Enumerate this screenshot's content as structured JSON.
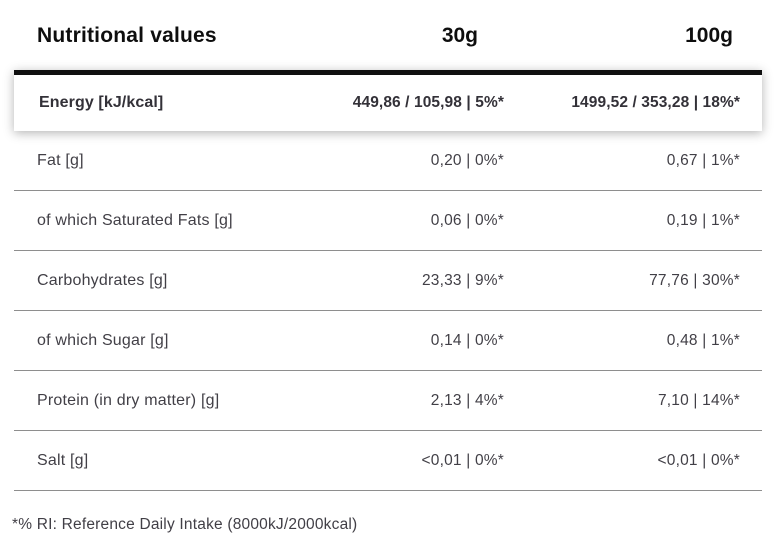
{
  "header": {
    "title": "Nutritional values",
    "col_30g": "30g",
    "col_100g": "100g"
  },
  "energy_row": {
    "label": "Energy [kJ/kcal]",
    "value_30g": "449,86 / 105,98 | 5%*",
    "value_100g": "1499,52 / 353,28 | 18%*"
  },
  "rows": [
    {
      "label": "Fat [g]",
      "value_30g": "0,20 | 0%*",
      "value_100g": "0,67 | 1%*"
    },
    {
      "label": "of which Saturated Fats [g]",
      "value_30g": "0,06 | 0%*",
      "value_100g": "0,19 | 1%*"
    },
    {
      "label": "Carbohydrates [g]",
      "value_30g": "23,33 | 9%*",
      "value_100g": "77,76 | 30%*"
    },
    {
      "label": "of which Sugar [g]",
      "value_30g": "0,14 | 0%*",
      "value_100g": "0,48 | 1%*"
    },
    {
      "label": "Protein (in dry matter) [g]",
      "value_30g": "2,13 | 4%*",
      "value_100g": "7,10 | 14%*"
    },
    {
      "label": "Salt [g]",
      "value_30g": "<0,01 | 0%*",
      "value_100g": "<0,01 | 0%*"
    }
  ],
  "footnote": "*% RI: Reference Daily Intake (8000kJ/2000kcal)",
  "colors": {
    "header_text": "#0e0e0e",
    "top_bar": "#101010",
    "row_text": "#413f46",
    "energy_text": "#333138",
    "separator_line": "#8e8e8e",
    "background": "#ffffff"
  }
}
